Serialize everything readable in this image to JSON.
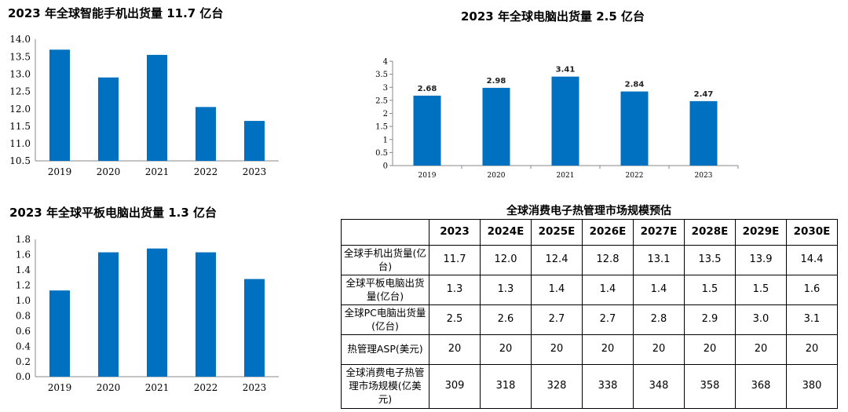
{
  "chart_data": [
    {
      "id": "phones",
      "type": "bar",
      "title": "2023 年全球智能手机出货量 11.7 亿台",
      "categories": [
        "2019",
        "2020",
        "2021",
        "2022",
        "2023"
      ],
      "values": [
        13.7,
        12.9,
        13.55,
        12.05,
        11.65
      ],
      "ylim": [
        10.5,
        14.0
      ],
      "yticks": [
        "10.5",
        "11.0",
        "11.5",
        "12.0",
        "12.5",
        "13.0",
        "13.5",
        "14.0"
      ],
      "data_labels": false,
      "grid": false,
      "color": "#0070C0"
    },
    {
      "id": "pcs",
      "type": "bar",
      "title": "2023 年全球电脑出货量 2.5 亿台",
      "categories": [
        "2019",
        "2020",
        "2021",
        "2022",
        "2023"
      ],
      "values": [
        2.68,
        2.98,
        3.41,
        2.84,
        2.47
      ],
      "ylim": [
        0,
        4
      ],
      "yticks": [
        "0",
        "0.5",
        "1",
        "1.5",
        "2",
        "2.5",
        "3",
        "3.5",
        "4"
      ],
      "data_labels": true,
      "grid": false,
      "color": "#0070C0"
    },
    {
      "id": "tablets",
      "type": "bar",
      "title": "2023 年全球平板电脑出货量 1.3 亿台",
      "categories": [
        "2019",
        "2020",
        "2021",
        "2022",
        "2023"
      ],
      "values": [
        1.13,
        1.63,
        1.68,
        1.63,
        1.28
      ],
      "ylim": [
        0,
        1.8
      ],
      "yticks": [
        "0.0",
        "0.2",
        "0.4",
        "0.6",
        "0.8",
        "1.0",
        "1.2",
        "1.4",
        "1.6",
        "1.8"
      ],
      "data_labels": false,
      "grid": false,
      "color": "#0070C0"
    },
    {
      "id": "market_table",
      "type": "table",
      "title": "全球消费电子热管理市场规模预估",
      "header": [
        "",
        "2023",
        "2024E",
        "2025E",
        "2026E",
        "2027E",
        "2028E",
        "2029E",
        "2030E"
      ],
      "rows": [
        {
          "label": "全球手机出货量(亿台)",
          "values": [
            "11.7",
            "12.0",
            "12.4",
            "12.8",
            "13.1",
            "13.5",
            "13.9",
            "14.4"
          ]
        },
        {
          "label": "全球平板电脑出货量(亿台)",
          "values": [
            "1.3",
            "1.3",
            "1.4",
            "1.4",
            "1.4",
            "1.5",
            "1.5",
            "1.6"
          ]
        },
        {
          "label": "全球PC电脑出货量(亿台)",
          "values": [
            "2.5",
            "2.6",
            "2.7",
            "2.7",
            "2.8",
            "2.9",
            "3.0",
            "3.1"
          ]
        },
        {
          "label": "热管理ASP(美元)",
          "values": [
            "20",
            "20",
            "20",
            "20",
            "20",
            "20",
            "20",
            "20"
          ]
        },
        {
          "label": "全球消费电子热管理市场规模(亿美元)",
          "values": [
            "309",
            "318",
            "328",
            "338",
            "348",
            "358",
            "368",
            "380"
          ]
        }
      ]
    }
  ]
}
